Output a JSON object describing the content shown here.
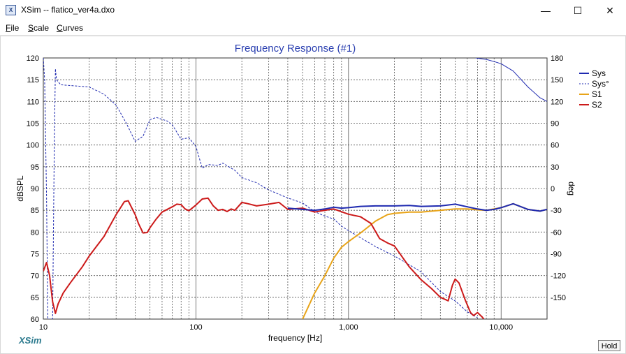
{
  "window": {
    "title": "XSim -- flatico_ver4a.dxo",
    "app_icon": "xsim-icon",
    "minimize_icon": "minimize-icon",
    "maximize_icon": "maximize-icon",
    "close_icon": "close-icon"
  },
  "menu": [
    {
      "label": "File",
      "ul": "F",
      "rest": "ile"
    },
    {
      "label": "Scale",
      "ul": "S",
      "rest": "cale"
    },
    {
      "label": "Curves",
      "ul": "C",
      "rest": "urves"
    }
  ],
  "footer": {
    "brand": "XSim",
    "hold_label": "Hold"
  },
  "colors": {
    "sys": "#1f2ab0",
    "s1": "#e8a419",
    "s2": "#cc1a1a",
    "title": "#2a3fb0",
    "grid": "#555555"
  },
  "chart_data": {
    "type": "line",
    "title": "Frequency Response (#1)",
    "xlabel": "frequency [Hz]",
    "ylabel": "dBSPL",
    "y2label": "deg",
    "xscale": "log",
    "xlim": [
      10,
      20000
    ],
    "ylim": [
      60,
      120
    ],
    "y2lim": [
      -180,
      180
    ],
    "x_tick_labels": [
      {
        "value": 10,
        "label": "10"
      },
      {
        "value": 100,
        "label": "100"
      },
      {
        "value": 1000,
        "label": "1,000"
      },
      {
        "value": 10000,
        "label": "10,000"
      }
    ],
    "y_ticks": [
      60,
      65,
      70,
      75,
      80,
      85,
      90,
      95,
      100,
      105,
      110,
      115,
      120
    ],
    "y2_ticks": [
      -150,
      -120,
      -90,
      -60,
      -30,
      0,
      30,
      60,
      90,
      120,
      150,
      180
    ],
    "grid": true,
    "legend_position": "right",
    "series": [
      {
        "name": "Sys",
        "axis": "left",
        "style": "solid",
        "color": "#1f2ab0",
        "points": [
          [
            400,
            85.5
          ],
          [
            500,
            85.2
          ],
          [
            600,
            85.0
          ],
          [
            700,
            85.3
          ],
          [
            800,
            85.7
          ],
          [
            900,
            85.5
          ],
          [
            1000,
            85.6
          ],
          [
            1200,
            85.9
          ],
          [
            1500,
            86.0
          ],
          [
            2000,
            86.0
          ],
          [
            2500,
            86.1
          ],
          [
            3000,
            85.9
          ],
          [
            4000,
            86.0
          ],
          [
            5000,
            86.4
          ],
          [
            6000,
            85.8
          ],
          [
            7000,
            85.3
          ],
          [
            8000,
            85.0
          ],
          [
            9000,
            85.2
          ],
          [
            10000,
            85.6
          ],
          [
            12000,
            86.5
          ],
          [
            15000,
            85.2
          ],
          [
            18000,
            84.8
          ],
          [
            20000,
            85.2
          ]
        ]
      },
      {
        "name": "Sys°",
        "axis": "right",
        "style": "dashed",
        "color": "#1f2ab0",
        "points": [
          [
            10,
            180
          ],
          [
            10.2,
            150
          ],
          [
            10.5,
            -10
          ],
          [
            10.7,
            -180
          ],
          [
            11.5,
            -180
          ],
          [
            11.8,
            60
          ],
          [
            12.0,
            165
          ],
          [
            12.2,
            150
          ],
          [
            13,
            143
          ],
          [
            15,
            142
          ],
          [
            20,
            140
          ],
          [
            25,
            130
          ],
          [
            30,
            115
          ],
          [
            35,
            90
          ],
          [
            40,
            65
          ],
          [
            45,
            72
          ],
          [
            50,
            95
          ],
          [
            55,
            98
          ],
          [
            65,
            93
          ],
          [
            70,
            88
          ],
          [
            80,
            68
          ],
          [
            90,
            70
          ],
          [
            100,
            58
          ],
          [
            110,
            28
          ],
          [
            120,
            33
          ],
          [
            140,
            32
          ],
          [
            150,
            35
          ],
          [
            180,
            25
          ],
          [
            200,
            15
          ],
          [
            250,
            8
          ],
          [
            300,
            -2
          ],
          [
            400,
            -13
          ],
          [
            500,
            -20
          ],
          [
            600,
            -32
          ],
          [
            700,
            -38
          ],
          [
            800,
            -42
          ],
          [
            900,
            -52
          ],
          [
            1000,
            -58
          ],
          [
            1500,
            -80
          ],
          [
            2000,
            -93
          ],
          [
            3000,
            -115
          ],
          [
            4000,
            -142
          ],
          [
            5000,
            -155
          ],
          [
            6000,
            -170
          ],
          [
            7000,
            -178
          ]
        ]
      },
      {
        "name": "Sys° wrap",
        "axis": "right",
        "style": "solid",
        "color": "#1f2ab0",
        "points": [
          [
            6800,
            180
          ],
          [
            8000,
            178
          ],
          [
            9000,
            175
          ],
          [
            10000,
            172
          ],
          [
            12000,
            162
          ],
          [
            15000,
            140
          ],
          [
            18000,
            125
          ],
          [
            20000,
            120
          ]
        ]
      },
      {
        "name": "S1",
        "axis": "left",
        "style": "solid",
        "color": "#e8a419",
        "points": [
          [
            500,
            60.0
          ],
          [
            600,
            66
          ],
          [
            700,
            70
          ],
          [
            800,
            74
          ],
          [
            900,
            76.5
          ],
          [
            1000,
            77.8
          ],
          [
            1200,
            79.8
          ],
          [
            1500,
            82.5
          ],
          [
            1800,
            84.0
          ],
          [
            2000,
            84.3
          ],
          [
            2500,
            84.6
          ],
          [
            3000,
            84.6
          ],
          [
            4000,
            85.0
          ],
          [
            5000,
            85.3
          ],
          [
            6000,
            85.3
          ],
          [
            7000,
            85.1
          ],
          [
            8000,
            85.0
          ],
          [
            10000,
            85.6
          ],
          [
            12000,
            86.5
          ],
          [
            15000,
            85.2
          ],
          [
            18000,
            84.8
          ],
          [
            20000,
            85.2
          ]
        ]
      },
      {
        "name": "S2",
        "axis": "left",
        "style": "solid",
        "color": "#cc1a1a",
        "points": [
          [
            10,
            71
          ],
          [
            10.5,
            73
          ],
          [
            11,
            70
          ],
          [
            11.5,
            64
          ],
          [
            12,
            61.3
          ],
          [
            12.5,
            63.5
          ],
          [
            13.5,
            66
          ],
          [
            15,
            68.3
          ],
          [
            18,
            72
          ],
          [
            20,
            74.5
          ],
          [
            25,
            79
          ],
          [
            30,
            84
          ],
          [
            34,
            87
          ],
          [
            36,
            87.2
          ],
          [
            40,
            84
          ],
          [
            42,
            82
          ],
          [
            45,
            79.8
          ],
          [
            48,
            79.9
          ],
          [
            50,
            81
          ],
          [
            55,
            83
          ],
          [
            60,
            84.6
          ],
          [
            70,
            85.8
          ],
          [
            75,
            86.4
          ],
          [
            80,
            86.3
          ],
          [
            85,
            85.3
          ],
          [
            90,
            84.9
          ],
          [
            100,
            86.2
          ],
          [
            110,
            87.6
          ],
          [
            120,
            87.8
          ],
          [
            130,
            86
          ],
          [
            140,
            85
          ],
          [
            150,
            85.2
          ],
          [
            160,
            84.7
          ],
          [
            170,
            85.3
          ],
          [
            180,
            85.0
          ],
          [
            200,
            86.8
          ],
          [
            220,
            86.5
          ],
          [
            250,
            86.0
          ],
          [
            300,
            86.4
          ],
          [
            350,
            86.8
          ],
          [
            400,
            85.2
          ],
          [
            500,
            85.5
          ],
          [
            600,
            84.6
          ],
          [
            700,
            85.0
          ],
          [
            800,
            85.3
          ],
          [
            1000,
            84.1
          ],
          [
            1200,
            83.5
          ],
          [
            1400,
            82
          ],
          [
            1600,
            78.5
          ],
          [
            1800,
            77.5
          ],
          [
            2000,
            76.8
          ],
          [
            2500,
            72
          ],
          [
            3000,
            69
          ],
          [
            3500,
            67
          ],
          [
            4000,
            65
          ],
          [
            4500,
            64.2
          ],
          [
            4800,
            67.8
          ],
          [
            5000,
            69.2
          ],
          [
            5300,
            68.3
          ],
          [
            5800,
            64.5
          ],
          [
            6300,
            61.5
          ],
          [
            6600,
            60.8
          ],
          [
            7000,
            61.5
          ],
          [
            7500,
            60.5
          ],
          [
            7700,
            60
          ]
        ]
      }
    ]
  }
}
